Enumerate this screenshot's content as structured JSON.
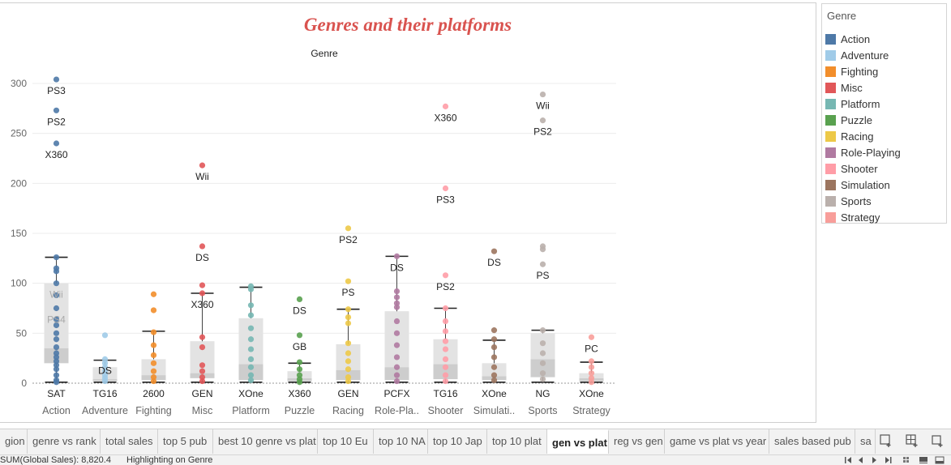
{
  "chart_data": {
    "type": "box",
    "title": "Genres and their platforms",
    "column_header": "Genre",
    "ylim": [
      0,
      315
    ],
    "yticks": [
      0,
      50,
      100,
      150,
      200,
      250,
      300
    ],
    "grid": true,
    "legend_position": "right",
    "categories": [
      "Action",
      "Adventure",
      "Fighting",
      "Misc",
      "Platform",
      "Puzzle",
      "Racing",
      "Role-Pla..",
      "Shooter",
      "Simulati..",
      "Sports",
      "Strategy"
    ],
    "colors": [
      "#4e79a7",
      "#a0cbe8",
      "#f28e2b",
      "#e15759",
      "#76b7b2",
      "#59a14f",
      "#edc948",
      "#b07aa1",
      "#ff9da7",
      "#9c755f",
      "#bab0ac",
      "#f89e9a"
    ],
    "boxes": [
      {
        "whisker_low": 1,
        "q1": 20,
        "median": 35,
        "q3": 100,
        "whisker_high": 126
      },
      {
        "whisker_low": 1,
        "q1": 2,
        "median": 4,
        "q3": 16,
        "whisker_high": 23
      },
      {
        "whisker_low": 1,
        "q1": 3,
        "median": 8,
        "q3": 24,
        "whisker_high": 52
      },
      {
        "whisker_low": 1,
        "q1": 5,
        "median": 10,
        "q3": 42,
        "whisker_high": 90
      },
      {
        "whisker_low": 1,
        "q1": 3,
        "median": 19,
        "q3": 65,
        "whisker_high": 96
      },
      {
        "whisker_low": 1,
        "q1": 2,
        "median": 5,
        "q3": 12,
        "whisker_high": 20
      },
      {
        "whisker_low": 1,
        "q1": 3,
        "median": 13,
        "q3": 39,
        "whisker_high": 74
      },
      {
        "whisker_low": 1,
        "q1": 3,
        "median": 16,
        "q3": 72,
        "whisker_high": 127
      },
      {
        "whisker_low": 1,
        "q1": 4,
        "median": 19,
        "q3": 44,
        "whisker_high": 75
      },
      {
        "whisker_low": 1,
        "q1": 3,
        "median": 7,
        "q3": 20,
        "whisker_high": 43
      },
      {
        "whisker_low": 1,
        "q1": 6,
        "median": 24,
        "q3": 50,
        "whisker_high": 53
      },
      {
        "whisker_low": 1,
        "q1": 2,
        "median": 5,
        "q3": 10,
        "whisker_high": 21
      }
    ],
    "points": [
      [
        304,
        273,
        240,
        126,
        115,
        112,
        100,
        88,
        75,
        64,
        58,
        50,
        44,
        36,
        30,
        26,
        22,
        18,
        14,
        8,
        3,
        1
      ],
      [
        48,
        24,
        20,
        16,
        12,
        8,
        5,
        2
      ],
      [
        89,
        73,
        51,
        38,
        28,
        20,
        12,
        6,
        2
      ],
      [
        218,
        137,
        98,
        90,
        46,
        36,
        18,
        12,
        6,
        2
      ],
      [
        97,
        94,
        78,
        68,
        55,
        44,
        34,
        24,
        16,
        8,
        3
      ],
      [
        84,
        48,
        21,
        14,
        8,
        4,
        1
      ],
      [
        155,
        102,
        74,
        66,
        60,
        40,
        30,
        22,
        14,
        6,
        2
      ],
      [
        127,
        92,
        86,
        80,
        76,
        62,
        50,
        38,
        26,
        16,
        8,
        2
      ],
      [
        277,
        195,
        108,
        75,
        62,
        52,
        42,
        34,
        24,
        16,
        8,
        2
      ],
      [
        132,
        53,
        44,
        36,
        26,
        16,
        8,
        3
      ],
      [
        289,
        263,
        137,
        134,
        119,
        53,
        40,
        30,
        20,
        10,
        4
      ],
      [
        46,
        22,
        16,
        10,
        5,
        1
      ]
    ],
    "point_labels": [
      [
        {
          "text": "PS3",
          "y": 304
        },
        {
          "text": "PS2",
          "y": 273
        },
        {
          "text": "X360",
          "y": 240
        },
        {
          "text": "Wii",
          "y": 100
        },
        {
          "text": "PS4",
          "y": 75
        }
      ],
      [
        {
          "text": "DS",
          "y": 24
        }
      ],
      [],
      [
        {
          "text": "Wii",
          "y": 218
        },
        {
          "text": "DS",
          "y": 137
        },
        {
          "text": "X360",
          "y": 90
        }
      ],
      [],
      [
        {
          "text": "DS",
          "y": 84
        },
        {
          "text": "GB",
          "y": 48
        }
      ],
      [
        {
          "text": "PS2",
          "y": 155
        },
        {
          "text": "PS",
          "y": 102
        }
      ],
      [
        {
          "text": "DS",
          "y": 127
        }
      ],
      [
        {
          "text": "X360",
          "y": 277
        },
        {
          "text": "PS3",
          "y": 195
        },
        {
          "text": "PS2",
          "y": 108
        }
      ],
      [
        {
          "text": "DS",
          "y": 132
        }
      ],
      [
        {
          "text": "Wii",
          "y": 289
        },
        {
          "text": "PS2",
          "y": 263
        },
        {
          "text": "PS",
          "y": 119
        }
      ],
      [
        {
          "text": "PC",
          "y": 46
        }
      ]
    ],
    "bottom_labels": [
      "SAT",
      "TG16",
      "2600",
      "GEN",
      "XOne",
      "X360",
      "GEN",
      "PCFX",
      "TG16",
      "XOne",
      "NG",
      "XOne"
    ],
    "faded_labels": [
      "Wii",
      "PS4"
    ]
  },
  "legend": {
    "title": "Genre",
    "items": [
      "Action",
      "Adventure",
      "Fighting",
      "Misc",
      "Platform",
      "Puzzle",
      "Racing",
      "Role-Playing",
      "Shooter",
      "Simulation",
      "Sports",
      "Strategy"
    ]
  },
  "tabs": [
    "gion",
    "genre vs rank",
    "total sales",
    "top 5 pub",
    "best 10 genre vs plat",
    "top 10 Eu",
    "top 10 NA",
    "top 10 Jap",
    "top 10 plat",
    "gen vs plat",
    "reg vs gen",
    "game vs plat vs year",
    "sales based pub",
    "sa"
  ],
  "active_tab": "gen vs plat",
  "status": {
    "sum": "SUM(Global Sales): 8,820.4",
    "highlight": "Highlighting on Genre"
  }
}
